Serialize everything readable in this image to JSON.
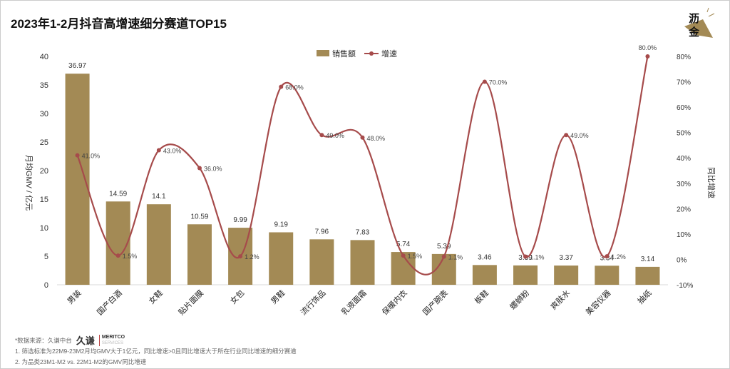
{
  "title": "2023年1-2月抖音高增速细分赛道TOP15",
  "logo": {
    "line1": "沥",
    "line2": "金"
  },
  "source": "*数据来源：久谦中台",
  "brand": {
    "cn": "久谦",
    "en1": "MERITCO",
    "en2": "SERVICES"
  },
  "notes": [
    "1. 筛选标准为22M9-23M2月均GMV大于1亿元，同比增速>0且同比增速大于所在行业同比增速的细分赛道",
    "2. 为品类23M1-M2 vs. 22M1-M2的GMV同比增速"
  ],
  "colors": {
    "bar": "#A38A55",
    "line": "#A64B4B"
  },
  "chart_data": {
    "type": "bar+line",
    "title": "2023年1-2月抖音高增速细分赛道TOP15",
    "categories": [
      "男装",
      "国产白酒",
      "女鞋",
      "贴片面膜",
      "女包",
      "男鞋",
      "流行饰品",
      "乳液面霜",
      "保暖内衣",
      "国产腕表",
      "板鞋",
      "螺蛳粉",
      "爽肤水",
      "美容仪器",
      "抽纸"
    ],
    "series": [
      {
        "name": "销售额",
        "type": "bar",
        "axis": "left",
        "values": [
          36.97,
          14.59,
          14.1,
          10.59,
          9.99,
          9.19,
          7.96,
          7.83,
          5.74,
          5.39,
          3.46,
          3.39,
          3.37,
          3.34,
          3.14
        ],
        "labels": [
          "36.97",
          "14.59",
          "14.1",
          "10.59",
          "9.99",
          "9.19",
          "7.96",
          "7.83",
          "5.74",
          "5.39",
          "3.46",
          "3.39",
          "3.37",
          "3.34",
          "3.14"
        ]
      },
      {
        "name": "增速",
        "type": "line",
        "axis": "right",
        "values": [
          41.0,
          1.5,
          43.0,
          36.0,
          1.2,
          68.0,
          49.0,
          48.0,
          1.5,
          1.1,
          70.0,
          1.1,
          49.0,
          1.2,
          80.0
        ],
        "labels": [
          "41.0%",
          "1.5%",
          "43.0%",
          "36.0%",
          "1.2%",
          "68.0%",
          "49.0%",
          "48.0%",
          "1.5%",
          "1.1%",
          "70.0%",
          "1.1%",
          "49.0%",
          "1.2%",
          "80.0%"
        ]
      }
    ],
    "ylabel": "月均GMV / 亿元",
    "y2label": "同比增速",
    "ylim": [
      0,
      40
    ],
    "yticks": [
      "0",
      "5",
      "10",
      "15",
      "20",
      "25",
      "30",
      "35",
      "40"
    ],
    "y2lim": [
      -10,
      80
    ],
    "y2ticks": [
      "-10%",
      "0%",
      "10%",
      "20%",
      "30%",
      "40%",
      "50%",
      "60%",
      "70%",
      "80%"
    ],
    "legend": "top-center",
    "grid": false
  }
}
